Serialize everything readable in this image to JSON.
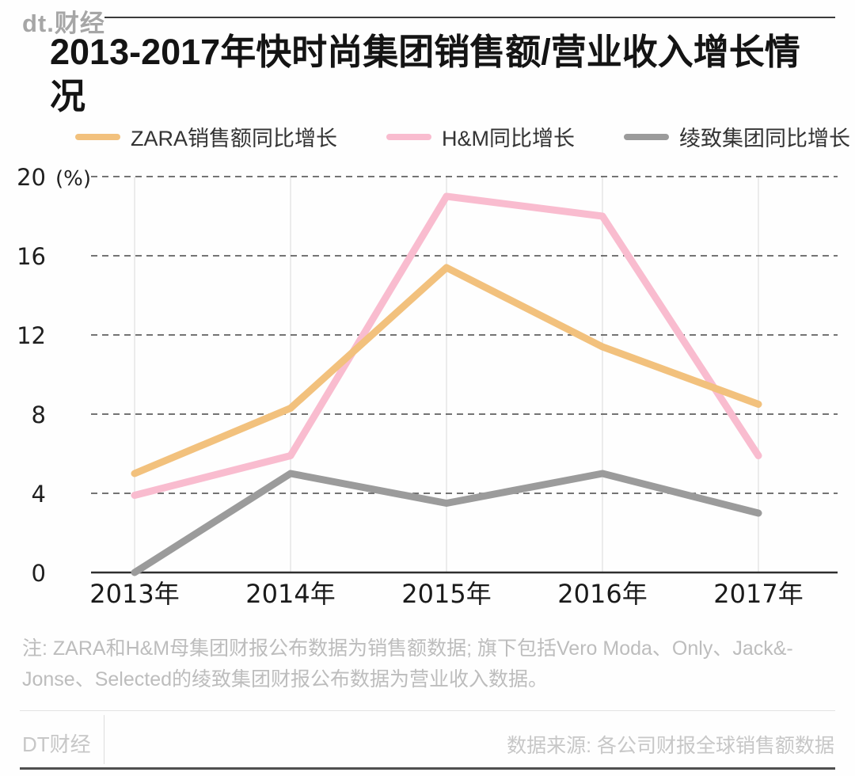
{
  "header": {
    "logo_dt": "dt.",
    "logo_cn": "财经"
  },
  "title": "2013-2017年快时尚集团销售额/营业收入增长情况",
  "chart_data": {
    "type": "line",
    "title": "2013-2017年快时尚集团销售额/营业收入增长情况",
    "unit_label": "(%)",
    "categories": [
      "2013年",
      "2014年",
      "2015年",
      "2016年",
      "2017年"
    ],
    "series": [
      {
        "name": "ZARA销售额同比增长",
        "color": "#F2C17D",
        "values": [
          5,
          8.3,
          15.4,
          11.4,
          8.5
        ]
      },
      {
        "name": "H&M同比增长",
        "color": "#F9BCCF",
        "values": [
          3.9,
          5.9,
          19,
          18,
          5.9
        ]
      },
      {
        "name": "绫致集团同比增长",
        "color": "#9B9B9B",
        "values": [
          0,
          5,
          3.5,
          5,
          3
        ]
      }
    ],
    "yticks": [
      0,
      4,
      8,
      12,
      16,
      20
    ],
    "ylim": [
      0,
      20
    ],
    "grid": "horizontal dashed dark lines, vertical light solid lines per year",
    "legend_position": "top"
  },
  "note": {
    "line1": "注: ZARA和H&M母集团财报公布数据为销售额数据; 旗下包括Vero Moda、Only、Jack&-",
    "line2": "Jonse、Selected的绫致集团财报公布数据为营业收入数据。"
  },
  "footer": {
    "brand": "DT财经",
    "source": "数据来源: 各公司财报全球销售额数据"
  }
}
